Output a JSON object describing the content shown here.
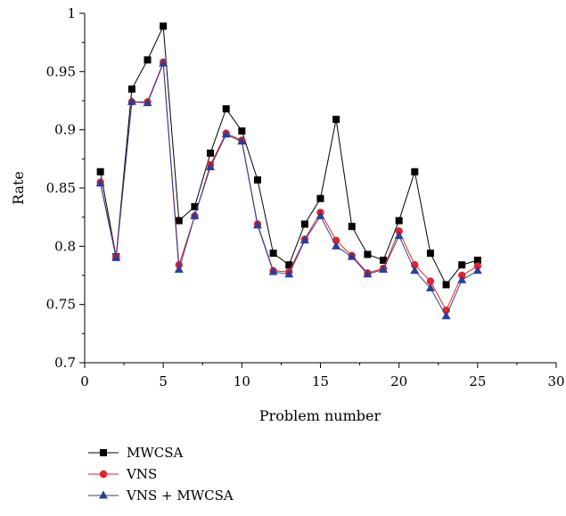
{
  "chart_data": {
    "type": "line",
    "title": "",
    "xlabel": "Problem number",
    "ylabel": "Rate",
    "xlim": [
      0,
      30
    ],
    "ylim": [
      0.7,
      1.0
    ],
    "xticks": [
      0,
      5,
      10,
      15,
      20,
      25,
      30
    ],
    "yticks": [
      0.7,
      0.75,
      0.8,
      0.85,
      0.9,
      0.95,
      1
    ],
    "ytick_labels": [
      "0.7",
      "0.75",
      "0.8",
      "0.85",
      "0.9",
      "0.95",
      "1"
    ],
    "grid": false,
    "legend_placement": "below",
    "x": [
      1,
      2,
      3,
      4,
      5,
      6,
      7,
      8,
      9,
      10,
      11,
      12,
      13,
      14,
      15,
      16,
      17,
      18,
      19,
      20,
      21,
      22,
      23,
      24,
      25
    ],
    "series": [
      {
        "name": "MWCSA",
        "color": "#000000",
        "marker": "square",
        "values": [
          0.864,
          0.791,
          0.935,
          0.96,
          0.989,
          0.822,
          0.834,
          0.88,
          0.918,
          0.899,
          0.857,
          0.794,
          0.784,
          0.819,
          0.841,
          0.909,
          0.817,
          0.793,
          0.788,
          0.822,
          0.864,
          0.794,
          0.767,
          0.784,
          0.788
        ]
      },
      {
        "name": "VNS",
        "color": "#e8212b",
        "marker": "circle",
        "values": [
          0.855,
          0.791,
          0.924,
          0.924,
          0.958,
          0.784,
          0.826,
          0.87,
          0.897,
          0.891,
          0.819,
          0.779,
          0.778,
          0.806,
          0.829,
          0.805,
          0.792,
          0.777,
          0.781,
          0.813,
          0.784,
          0.77,
          0.745,
          0.775,
          0.783
        ]
      },
      {
        "name": "VNS + MWCSA",
        "color": "#2e3d95",
        "marker": "triangle",
        "values": [
          0.854,
          0.79,
          0.924,
          0.923,
          0.957,
          0.78,
          0.826,
          0.868,
          0.896,
          0.89,
          0.818,
          0.778,
          0.776,
          0.805,
          0.826,
          0.8,
          0.791,
          0.776,
          0.78,
          0.809,
          0.779,
          0.764,
          0.74,
          0.771,
          0.779
        ]
      }
    ]
  }
}
